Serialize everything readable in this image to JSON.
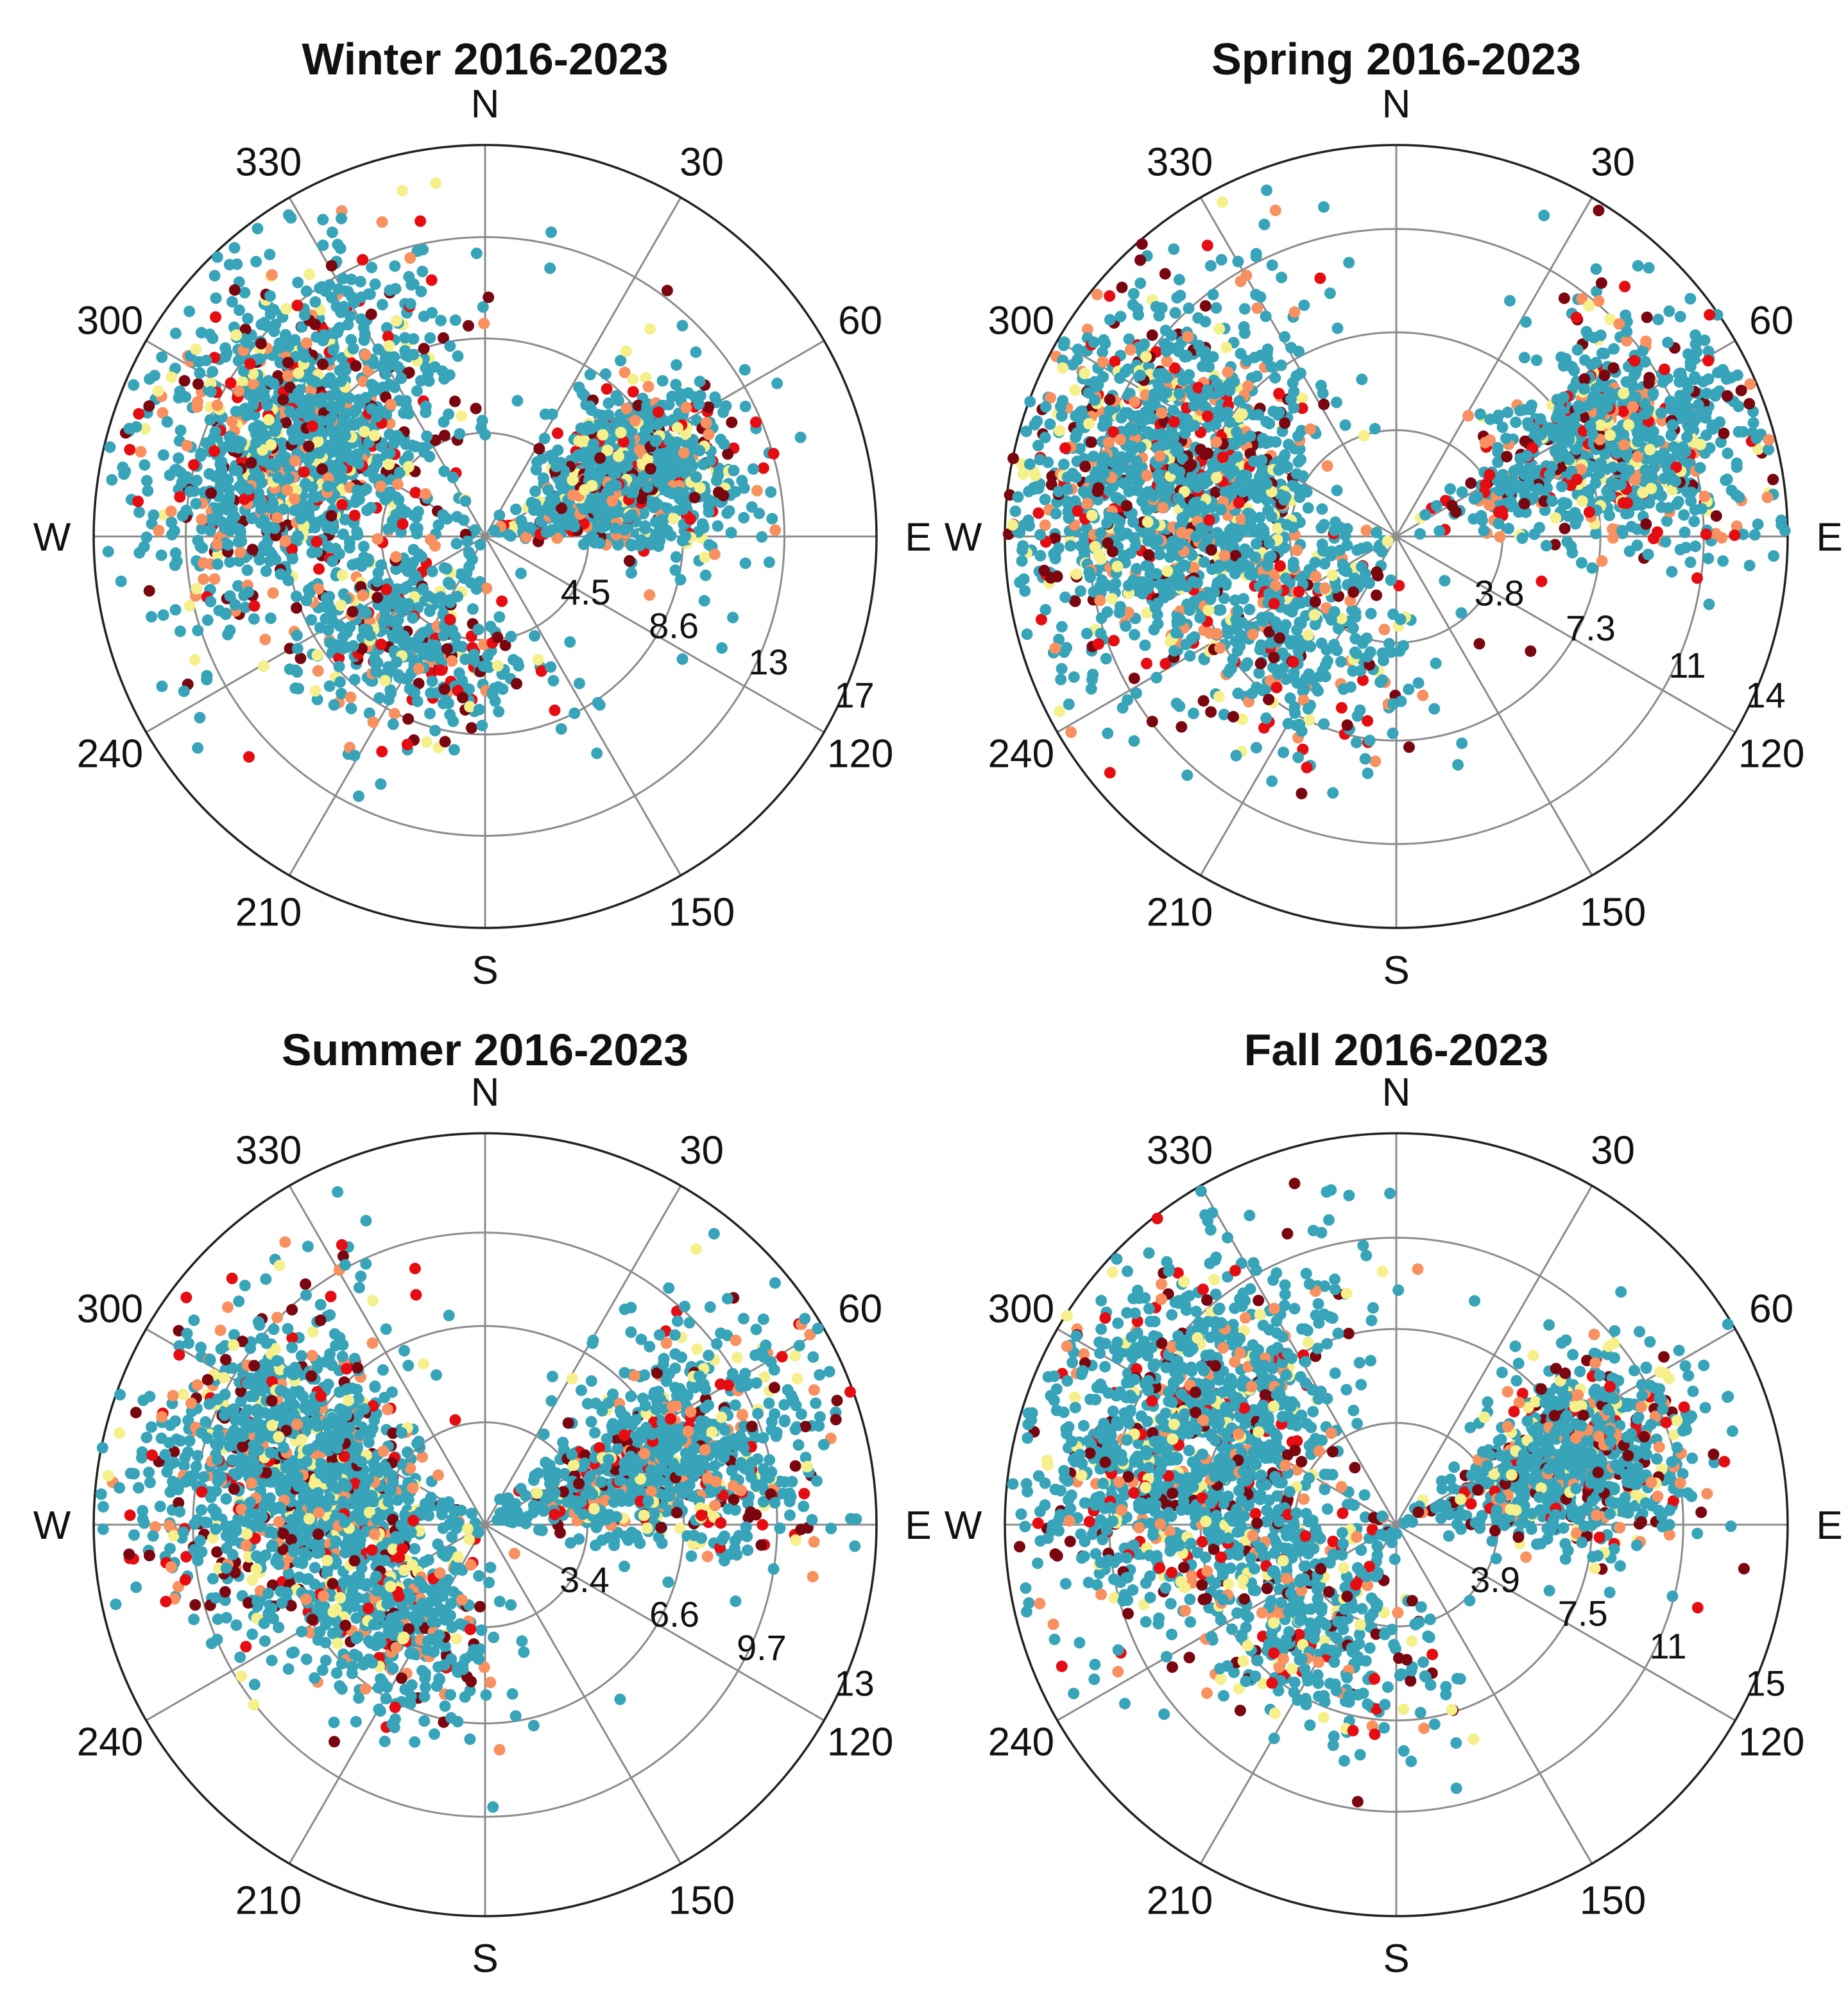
{
  "figure": {
    "colors": {
      "grid": "#8c8c8c",
      "outer_circle": "#222222",
      "text": "#111111",
      "point_main": "#37a4b9",
      "point_yellow": "#f5f08c",
      "point_orange": "#f89060",
      "point_red": "#e60d12",
      "point_darkred": "#7a0710"
    }
  },
  "chart_data": [
    {
      "type": "scatter",
      "projection": "polar",
      "title": "Winter 2016-2023",
      "theta_labels": [
        "N",
        "30",
        "60",
        "E",
        "120",
        "150",
        "S",
        "210",
        "240",
        "W",
        "300",
        "330"
      ],
      "r_ticks": [
        4.5,
        8.6,
        13,
        17
      ],
      "r_tick_labels": [
        "4.5",
        "8.6",
        "13",
        "17"
      ],
      "rmax": 17,
      "clusters": [
        {
          "dir_deg": 297,
          "spread_deg": 24,
          "r_mean": 10.0,
          "r_sd": 3.0
        },
        {
          "dir_deg": 68,
          "spread_deg": 14,
          "r_mean": 7.0,
          "r_sd": 2.5
        },
        {
          "dir_deg": 215,
          "spread_deg": 30,
          "r_mean": 6.0,
          "r_sd": 2.0
        }
      ]
    },
    {
      "type": "scatter",
      "projection": "polar",
      "title": "Spring 2016-2023",
      "theta_labels": [
        "N",
        "30",
        "60",
        "E",
        "120",
        "150",
        "S",
        "210",
        "240",
        "W",
        "300",
        "330"
      ],
      "r_ticks": [
        3.8,
        7.3,
        11,
        14
      ],
      "r_tick_labels": [
        "3.8",
        "7.3",
        "11",
        "14"
      ],
      "rmax": 14,
      "clusters": [
        {
          "dir_deg": 285,
          "spread_deg": 22,
          "r_mean": 9.0,
          "r_sd": 2.7
        },
        {
          "dir_deg": 66,
          "spread_deg": 13,
          "r_mean": 8.5,
          "r_sd": 2.6
        },
        {
          "dir_deg": 230,
          "spread_deg": 30,
          "r_mean": 5.5,
          "r_sd": 2.0
        }
      ]
    },
    {
      "type": "scatter",
      "projection": "polar",
      "title": "Summer 2016-2023",
      "theta_labels": [
        "N",
        "30",
        "60",
        "E",
        "120",
        "150",
        "S",
        "210",
        "240",
        "W",
        "300",
        "330"
      ],
      "r_ticks": [
        3.4,
        6.6,
        9.7,
        13
      ],
      "r_tick_labels": [
        "3.4",
        "6.6",
        "9.7",
        "13"
      ],
      "rmax": 13,
      "clusters": [
        {
          "dir_deg": 285,
          "spread_deg": 20,
          "r_mean": 7.0,
          "r_sd": 2.4
        },
        {
          "dir_deg": 70,
          "spread_deg": 14,
          "r_mean": 6.5,
          "r_sd": 2.6
        },
        {
          "dir_deg": 225,
          "spread_deg": 25,
          "r_mean": 4.5,
          "r_sd": 1.6
        }
      ]
    },
    {
      "type": "scatter",
      "projection": "polar",
      "title": "Fall 2016-2023",
      "theta_labels": [
        "N",
        "30",
        "60",
        "E",
        "120",
        "150",
        "S",
        "210",
        "240",
        "W",
        "300",
        "330"
      ],
      "r_ticks": [
        3.9,
        7.5,
        11,
        15
      ],
      "r_tick_labels": [
        "3.9",
        "7.5",
        "11",
        "15"
      ],
      "rmax": 15,
      "clusters": [
        {
          "dir_deg": 293,
          "spread_deg": 22,
          "r_mean": 9.0,
          "r_sd": 2.8
        },
        {
          "dir_deg": 70,
          "spread_deg": 13,
          "r_mean": 7.5,
          "r_sd": 2.5
        },
        {
          "dir_deg": 220,
          "spread_deg": 30,
          "r_mean": 5.5,
          "r_sd": 2.0
        }
      ]
    }
  ]
}
